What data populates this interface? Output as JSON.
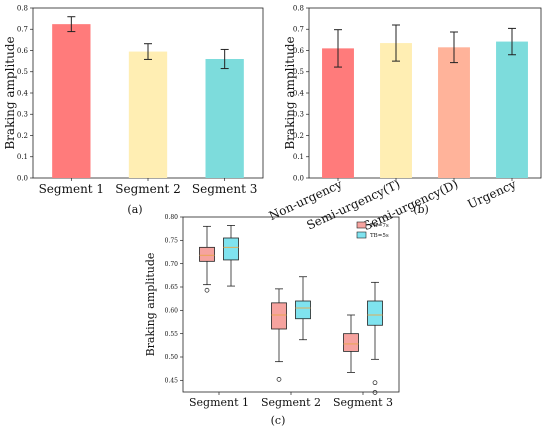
{
  "chart_data": [
    {
      "type": "bar",
      "panel_label": "(a)",
      "ylabel": "Braking amplitude",
      "ylim": [
        0,
        0.8
      ],
      "yticks": [
        "0.0",
        "0.1",
        "0.2",
        "0.3",
        "0.4",
        "0.5",
        "0.6",
        "0.7",
        "0.8"
      ],
      "categories": [
        "Segment 1",
        "Segment 2",
        "Segment 3"
      ],
      "values": [
        0.724,
        0.595,
        0.56
      ],
      "errors": [
        0.035,
        0.037,
        0.045
      ],
      "colors": [
        "#ff7b7b",
        "#ffeeb3",
        "#7ddcdc"
      ]
    },
    {
      "type": "bar",
      "panel_label": "(b)",
      "ylabel": "Braking amplitude",
      "ylim": [
        0,
        0.8
      ],
      "yticks": [
        "0.0",
        "0.1",
        "0.2",
        "0.3",
        "0.4",
        "0.5",
        "0.6",
        "0.7",
        "0.8"
      ],
      "categories": [
        "Non-urgency",
        "Semi-urgency(T)",
        "Semi-urgency(D)",
        "Urgency"
      ],
      "values": [
        0.61,
        0.635,
        0.615,
        0.642
      ],
      "errors": [
        0.088,
        0.085,
        0.072,
        0.062
      ],
      "colors": [
        "#ff7b7b",
        "#ffeeb3",
        "#ffb39a",
        "#7ddcdc"
      ]
    },
    {
      "type": "box",
      "panel_label": "(c)",
      "ylabel": "Braking amplitude",
      "ylim": [
        0.425,
        0.8
      ],
      "yticks": [
        "0.45",
        "0.50",
        "0.55",
        "0.60",
        "0.65",
        "0.70",
        "0.75",
        "0.80"
      ],
      "categories": [
        "Segment 1",
        "Segment 2",
        "Segment 3"
      ],
      "series": [
        {
          "name": "TB=7s",
          "color": "#f6a39f",
          "boxes": [
            {
              "min": 0.655,
              "q1": 0.705,
              "median": 0.718,
              "q3": 0.735,
              "max": 0.78,
              "outliers": [
                0.643
              ]
            },
            {
              "min": 0.49,
              "q1": 0.56,
              "median": 0.59,
              "q3": 0.616,
              "max": 0.646,
              "outliers": [
                0.452
              ]
            },
            {
              "min": 0.467,
              "q1": 0.512,
              "median": 0.528,
              "q3": 0.55,
              "max": 0.59,
              "outliers": []
            }
          ]
        },
        {
          "name": "TB=5s",
          "color": "#7fe3ef",
          "boxes": [
            {
              "min": 0.652,
              "q1": 0.708,
              "median": 0.735,
              "q3": 0.755,
              "max": 0.782,
              "outliers": []
            },
            {
              "min": 0.537,
              "q1": 0.582,
              "median": 0.605,
              "q3": 0.62,
              "max": 0.672,
              "outliers": []
            },
            {
              "min": 0.495,
              "q1": 0.568,
              "median": 0.59,
              "q3": 0.62,
              "max": 0.66,
              "outliers": [
                0.445,
                0.424
              ]
            }
          ]
        }
      ]
    }
  ]
}
